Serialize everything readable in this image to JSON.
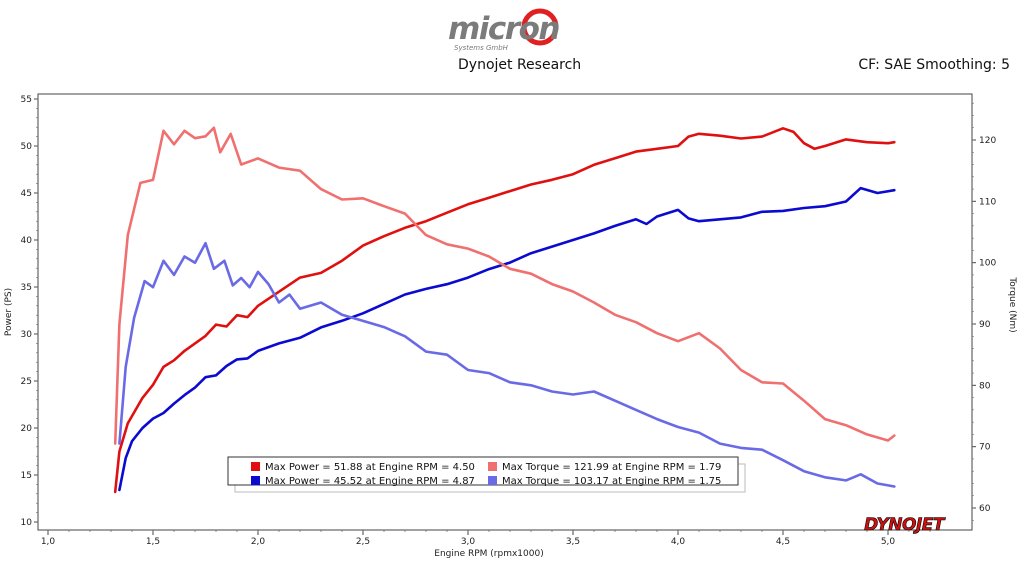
{
  "header": {
    "logo_text": "micron",
    "logo_sub": "Systems GmbH",
    "subtitle": "Dynojet Research",
    "correction": "CF: SAE Smoothing: 5"
  },
  "watermark": "DYNOJET",
  "colors": {
    "power_red": "#e01010",
    "power_blue": "#0a0ad0",
    "torque_red": "#f07070",
    "torque_blue": "#6a6ae6"
  },
  "chart_data": {
    "type": "line",
    "xlabel": "Engine RPM (rpmx1000)",
    "ylabel_left": "Power (PS)",
    "ylabel_right": "Torque (Nm)",
    "xlim": [
      1.0,
      5.2
    ],
    "ylim_left": [
      10,
      55
    ],
    "ylim_right": [
      57.5,
      126.5
    ],
    "x_ticks": [
      1.0,
      1.5,
      2.0,
      2.5,
      3.0,
      3.5,
      4.0,
      4.5,
      5.0
    ],
    "x_tick_labels": [
      "1,0",
      "1,5",
      "2,0",
      "2,5",
      "3,0",
      "3,5",
      "4,0",
      "4,5",
      "5,0"
    ],
    "y_left_ticks": [
      10,
      15,
      20,
      25,
      30,
      35,
      40,
      45,
      50,
      55
    ],
    "y_right_ticks": [
      60,
      70,
      80,
      90,
      100,
      110,
      120
    ],
    "grid": false,
    "legend_position": "bottom-center",
    "series": [
      {
        "name": "Max Power = 51.88 at Engine RPM = 4.50",
        "axis": "left",
        "color": "#e01010",
        "x": [
          1.32,
          1.34,
          1.38,
          1.45,
          1.5,
          1.55,
          1.6,
          1.65,
          1.7,
          1.75,
          1.8,
          1.85,
          1.9,
          1.95,
          2.0,
          2.1,
          2.2,
          2.3,
          2.4,
          2.5,
          2.6,
          2.7,
          2.8,
          2.9,
          3.0,
          3.1,
          3.2,
          3.3,
          3.4,
          3.5,
          3.6,
          3.7,
          3.8,
          3.9,
          4.0,
          4.05,
          4.1,
          4.2,
          4.3,
          4.4,
          4.5,
          4.55,
          4.6,
          4.65,
          4.7,
          4.8,
          4.9,
          5.0,
          5.03
        ],
        "y": [
          13.2,
          17.5,
          20.5,
          23.2,
          24.6,
          26.5,
          27.2,
          28.2,
          29.0,
          29.8,
          31.0,
          30.8,
          32.0,
          31.8,
          33.0,
          34.5,
          36.0,
          36.5,
          37.8,
          39.4,
          40.4,
          41.3,
          42.0,
          42.9,
          43.8,
          44.5,
          45.2,
          45.9,
          46.4,
          47.0,
          48.0,
          48.7,
          49.4,
          49.7,
          50.0,
          51.0,
          51.3,
          51.1,
          50.8,
          51.0,
          51.88,
          51.5,
          50.3,
          49.7,
          50.0,
          50.7,
          50.4,
          50.3,
          50.4
        ]
      },
      {
        "name": "Max Power = 45.52 at Engine RPM = 4.87",
        "axis": "left",
        "color": "#0a0ad0",
        "x": [
          1.34,
          1.37,
          1.4,
          1.45,
          1.5,
          1.55,
          1.6,
          1.65,
          1.7,
          1.75,
          1.8,
          1.85,
          1.9,
          1.95,
          2.0,
          2.1,
          2.2,
          2.3,
          2.4,
          2.5,
          2.6,
          2.7,
          2.8,
          2.9,
          3.0,
          3.1,
          3.2,
          3.3,
          3.4,
          3.5,
          3.6,
          3.7,
          3.8,
          3.85,
          3.9,
          4.0,
          4.05,
          4.1,
          4.2,
          4.3,
          4.4,
          4.5,
          4.6,
          4.7,
          4.8,
          4.87,
          4.95,
          5.03
        ],
        "y": [
          13.4,
          16.8,
          18.6,
          20.0,
          21.0,
          21.6,
          22.6,
          23.5,
          24.3,
          25.4,
          25.6,
          26.6,
          27.3,
          27.4,
          28.2,
          29.0,
          29.6,
          30.7,
          31.4,
          32.2,
          33.2,
          34.2,
          34.8,
          35.3,
          36.0,
          36.9,
          37.6,
          38.6,
          39.3,
          40.0,
          40.7,
          41.5,
          42.2,
          41.7,
          42.5,
          43.2,
          42.3,
          42.0,
          42.2,
          42.4,
          43.0,
          43.1,
          43.4,
          43.6,
          44.1,
          45.52,
          45.0,
          45.3
        ]
      },
      {
        "name": "Max Torque = 121.99 at Engine RPM = 1.79",
        "axis": "right",
        "color": "#f07070",
        "x": [
          1.32,
          1.34,
          1.38,
          1.44,
          1.5,
          1.55,
          1.6,
          1.65,
          1.7,
          1.75,
          1.79,
          1.82,
          1.87,
          1.92,
          2.0,
          2.1,
          2.2,
          2.3,
          2.4,
          2.5,
          2.6,
          2.7,
          2.8,
          2.9,
          3.0,
          3.1,
          3.2,
          3.3,
          3.4,
          3.5,
          3.6,
          3.7,
          3.8,
          3.9,
          4.0,
          4.1,
          4.2,
          4.3,
          4.4,
          4.5,
          4.6,
          4.7,
          4.8,
          4.9,
          5.0,
          5.03
        ],
        "y": [
          70.5,
          90.0,
          104.5,
          113.0,
          113.5,
          121.5,
          119.3,
          121.5,
          120.3,
          120.6,
          121.99,
          118.0,
          121.0,
          116.0,
          117.0,
          115.5,
          115.0,
          112.0,
          110.3,
          110.5,
          109.2,
          108.0,
          104.5,
          103.0,
          102.3,
          101.0,
          99.0,
          98.2,
          96.5,
          95.3,
          93.5,
          91.5,
          90.3,
          88.5,
          87.2,
          88.5,
          86.0,
          82.5,
          80.5,
          80.3,
          77.5,
          74.5,
          73.5,
          72.0,
          71.0,
          71.8
        ]
      },
      {
        "name": "Max Torque = 103.17 at Engine RPM = 1.75",
        "axis": "right",
        "color": "#6a6ae6",
        "x": [
          1.34,
          1.37,
          1.41,
          1.46,
          1.5,
          1.55,
          1.6,
          1.65,
          1.7,
          1.75,
          1.79,
          1.84,
          1.88,
          1.92,
          1.96,
          2.0,
          2.05,
          2.1,
          2.15,
          2.2,
          2.3,
          2.4,
          2.5,
          2.6,
          2.7,
          2.8,
          2.9,
          3.0,
          3.1,
          3.2,
          3.3,
          3.4,
          3.5,
          3.6,
          3.7,
          3.8,
          3.9,
          4.0,
          4.1,
          4.2,
          4.3,
          4.4,
          4.5,
          4.6,
          4.7,
          4.8,
          4.87,
          4.95,
          5.03
        ],
        "y": [
          70.5,
          83.0,
          91.0,
          97.0,
          96.0,
          100.3,
          98.0,
          101.0,
          100.0,
          103.17,
          99.0,
          100.3,
          96.3,
          97.5,
          96.0,
          98.5,
          96.5,
          93.5,
          94.8,
          92.5,
          93.5,
          91.5,
          90.5,
          89.5,
          88.0,
          85.5,
          85.0,
          82.5,
          82.0,
          80.5,
          80.0,
          79.0,
          78.5,
          79.0,
          77.5,
          76.0,
          74.5,
          73.2,
          72.3,
          70.5,
          69.8,
          69.5,
          67.8,
          66.0,
          65.0,
          64.5,
          65.5,
          64.0,
          63.5
        ]
      }
    ]
  }
}
